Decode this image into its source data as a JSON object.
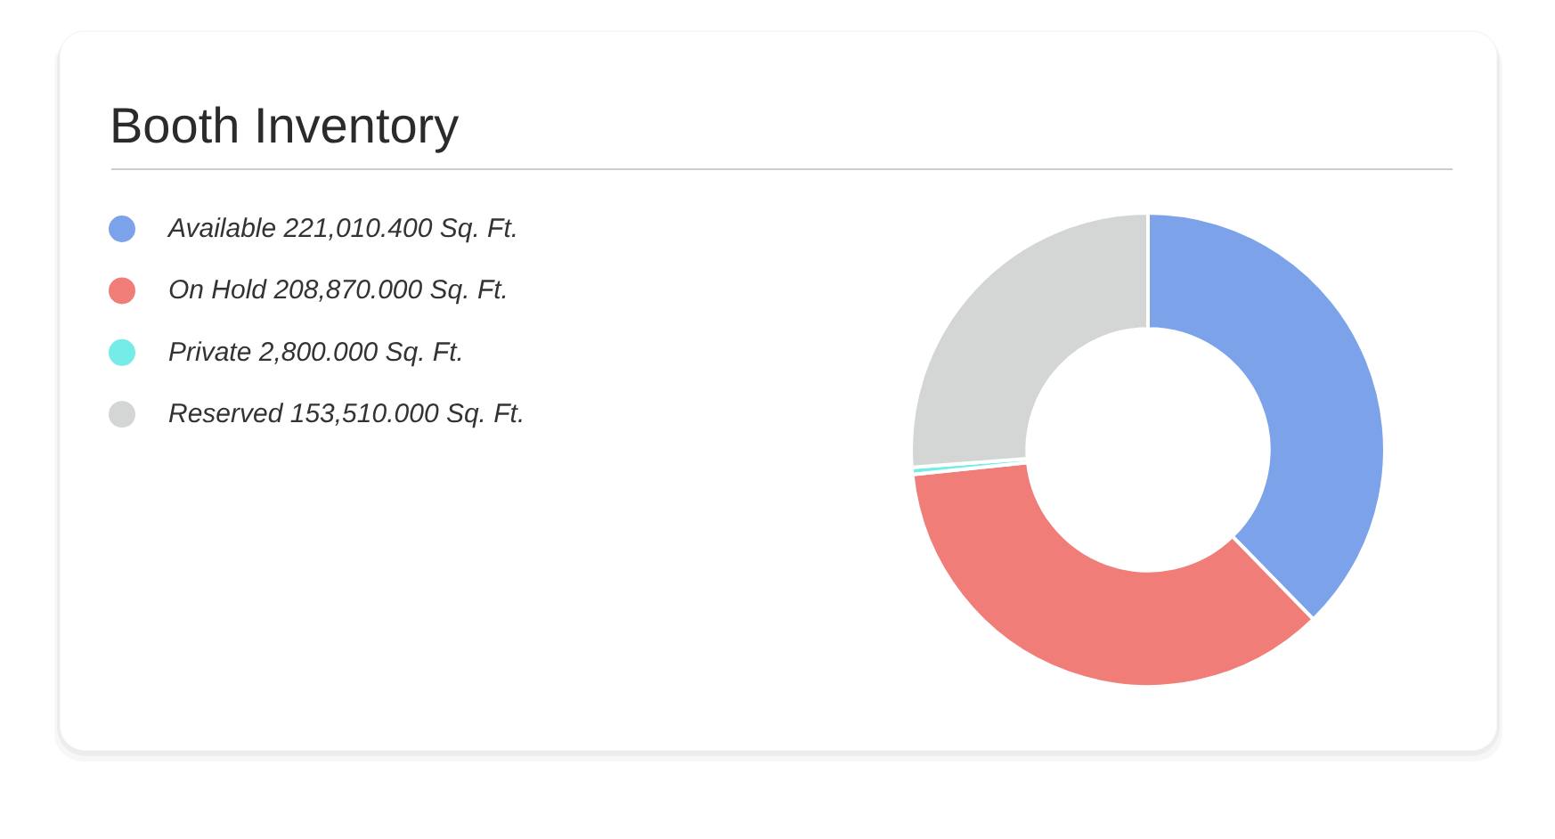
{
  "chart_data": {
    "type": "donut",
    "title": "Booth Inventory",
    "categories": [
      "Available",
      "On Hold",
      "Private",
      "Reserved"
    ],
    "values": [
      221010.4,
      208870,
      2800,
      153510
    ],
    "value_labels": [
      "221,010.400 Sq. Ft.",
      "208,870.000 Sq. Ft.",
      "2,800.000 Sq. Ft.",
      "153,510.000 Sq. Ft."
    ],
    "colors": [
      "#7ca3ea",
      "#f07d78",
      "#75ece6",
      "#d3d6d4"
    ],
    "legend": "left"
  }
}
